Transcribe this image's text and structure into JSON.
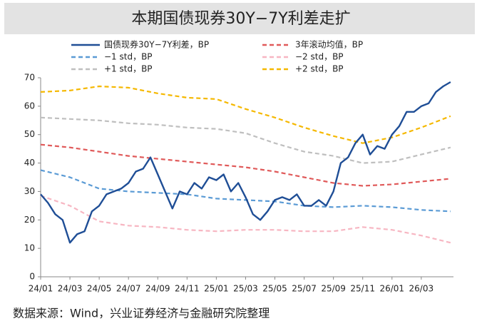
{
  "chart_data": {
    "type": "line",
    "title": "本期国债现券30Y−7Y利差走扩",
    "source": "数据来源：Wind，兴业证券经济与金融研究院整理",
    "xlim": [
      0,
      28.2
    ],
    "xticks": [
      {
        "value": 0,
        "label": "24/01"
      },
      {
        "value": 2,
        "label": "24/03"
      },
      {
        "value": 4,
        "label": "24/05"
      },
      {
        "value": 6,
        "label": "24/07"
      },
      {
        "value": 8,
        "label": "24/09"
      },
      {
        "value": 10,
        "label": "24/11"
      },
      {
        "value": 12,
        "label": "25/01"
      },
      {
        "value": 14,
        "label": "25/03"
      },
      {
        "value": 16,
        "label": "25/05"
      },
      {
        "value": 18,
        "label": "25/07"
      },
      {
        "value": 20,
        "label": "25/09"
      },
      {
        "value": 22,
        "label": "25/11"
      },
      {
        "value": 24,
        "label": "26/01"
      },
      {
        "value": 26,
        "label": "26/03"
      }
    ],
    "ylim": [
      0,
      70
    ],
    "yticks": [
      0,
      10,
      20,
      30,
      40,
      50,
      60,
      70
    ],
    "grid": false,
    "series": [
      {
        "name": "国债现券30Y−7Y利差，BP",
        "color": "#1f4e96",
        "dashed": false,
        "x": [
          0,
          0.5,
          1,
          1.5,
          2,
          2.5,
          3,
          3.5,
          4,
          4.5,
          5,
          5.5,
          6,
          6.5,
          7,
          7.5,
          8,
          8.5,
          9,
          9.5,
          10,
          10.5,
          11,
          11.5,
          12,
          12.5,
          13,
          13.5,
          14,
          14.5,
          15,
          15.5,
          16,
          16.5,
          17,
          17.5,
          18,
          18.5,
          19,
          19.5,
          20,
          20.5,
          21,
          21.5,
          22,
          22.5,
          23,
          23.5,
          24,
          24.5,
          25,
          25.5,
          26,
          26.5,
          27,
          27.5,
          28
        ],
        "values": [
          29,
          26,
          22,
          20,
          12,
          15,
          16,
          23,
          25,
          29,
          30,
          31,
          33,
          37,
          38,
          42,
          36,
          30,
          24,
          30,
          29,
          33,
          31,
          35,
          34,
          36,
          30,
          33,
          28,
          22,
          20,
          23,
          27,
          28,
          27,
          29,
          25,
          25,
          27,
          25,
          30,
          40,
          42,
          47,
          50,
          43,
          46,
          45,
          50,
          53,
          58,
          58,
          60,
          61,
          65,
          67,
          68.5
        ]
      },
      {
        "name": "3年滚动均值，BP",
        "color": "#e05a5a",
        "dashed": true,
        "x": [
          0,
          2,
          4,
          6,
          8,
          10,
          12,
          14,
          16,
          18,
          20,
          22,
          24,
          26,
          28
        ],
        "values": [
          46.5,
          45.5,
          44,
          42.5,
          41.5,
          40.5,
          39.5,
          38.5,
          37,
          35,
          33,
          32,
          32.5,
          33.5,
          34.5
        ]
      },
      {
        "name": "−1 std，BP",
        "color": "#5b9bd5",
        "dashed": true,
        "x": [
          0,
          2,
          4,
          6,
          8,
          10,
          12,
          14,
          16,
          18,
          20,
          22,
          24,
          26,
          28
        ],
        "values": [
          37.5,
          35,
          31,
          30,
          29.5,
          29,
          27.5,
          27,
          26.5,
          25,
          24.5,
          25,
          24.5,
          23.5,
          23
        ]
      },
      {
        "name": "−2 std，BP",
        "color": "#f7b6c2",
        "dashed": true,
        "x": [
          0,
          2,
          4,
          6,
          8,
          10,
          12,
          14,
          16,
          18,
          20,
          22,
          24,
          26,
          28
        ],
        "values": [
          28.5,
          25,
          19.5,
          18,
          17.5,
          16.5,
          16,
          16.5,
          16.5,
          16,
          16,
          17.5,
          16.5,
          14.5,
          12
        ]
      },
      {
        "name": "+1 std，BP",
        "color": "#bfbfbf",
        "dashed": true,
        "x": [
          0,
          2,
          4,
          6,
          8,
          10,
          12,
          14,
          16,
          18,
          20,
          22,
          24,
          26,
          28
        ],
        "values": [
          56,
          55.5,
          55,
          54,
          53.5,
          52.5,
          52,
          50.5,
          47,
          44,
          42.5,
          40,
          40.5,
          43,
          45.5
        ]
      },
      {
        "name": "+2 std，BP",
        "color": "#f5b800",
        "dashed": true,
        "x": [
          0,
          2,
          4,
          6,
          8,
          10,
          12,
          14,
          16,
          18,
          20,
          22,
          24,
          26,
          28
        ],
        "values": [
          65,
          65.5,
          67,
          66.5,
          64.5,
          63,
          62.5,
          59,
          56,
          52.5,
          49.5,
          47,
          49,
          52.5,
          56.5
        ]
      }
    ]
  }
}
